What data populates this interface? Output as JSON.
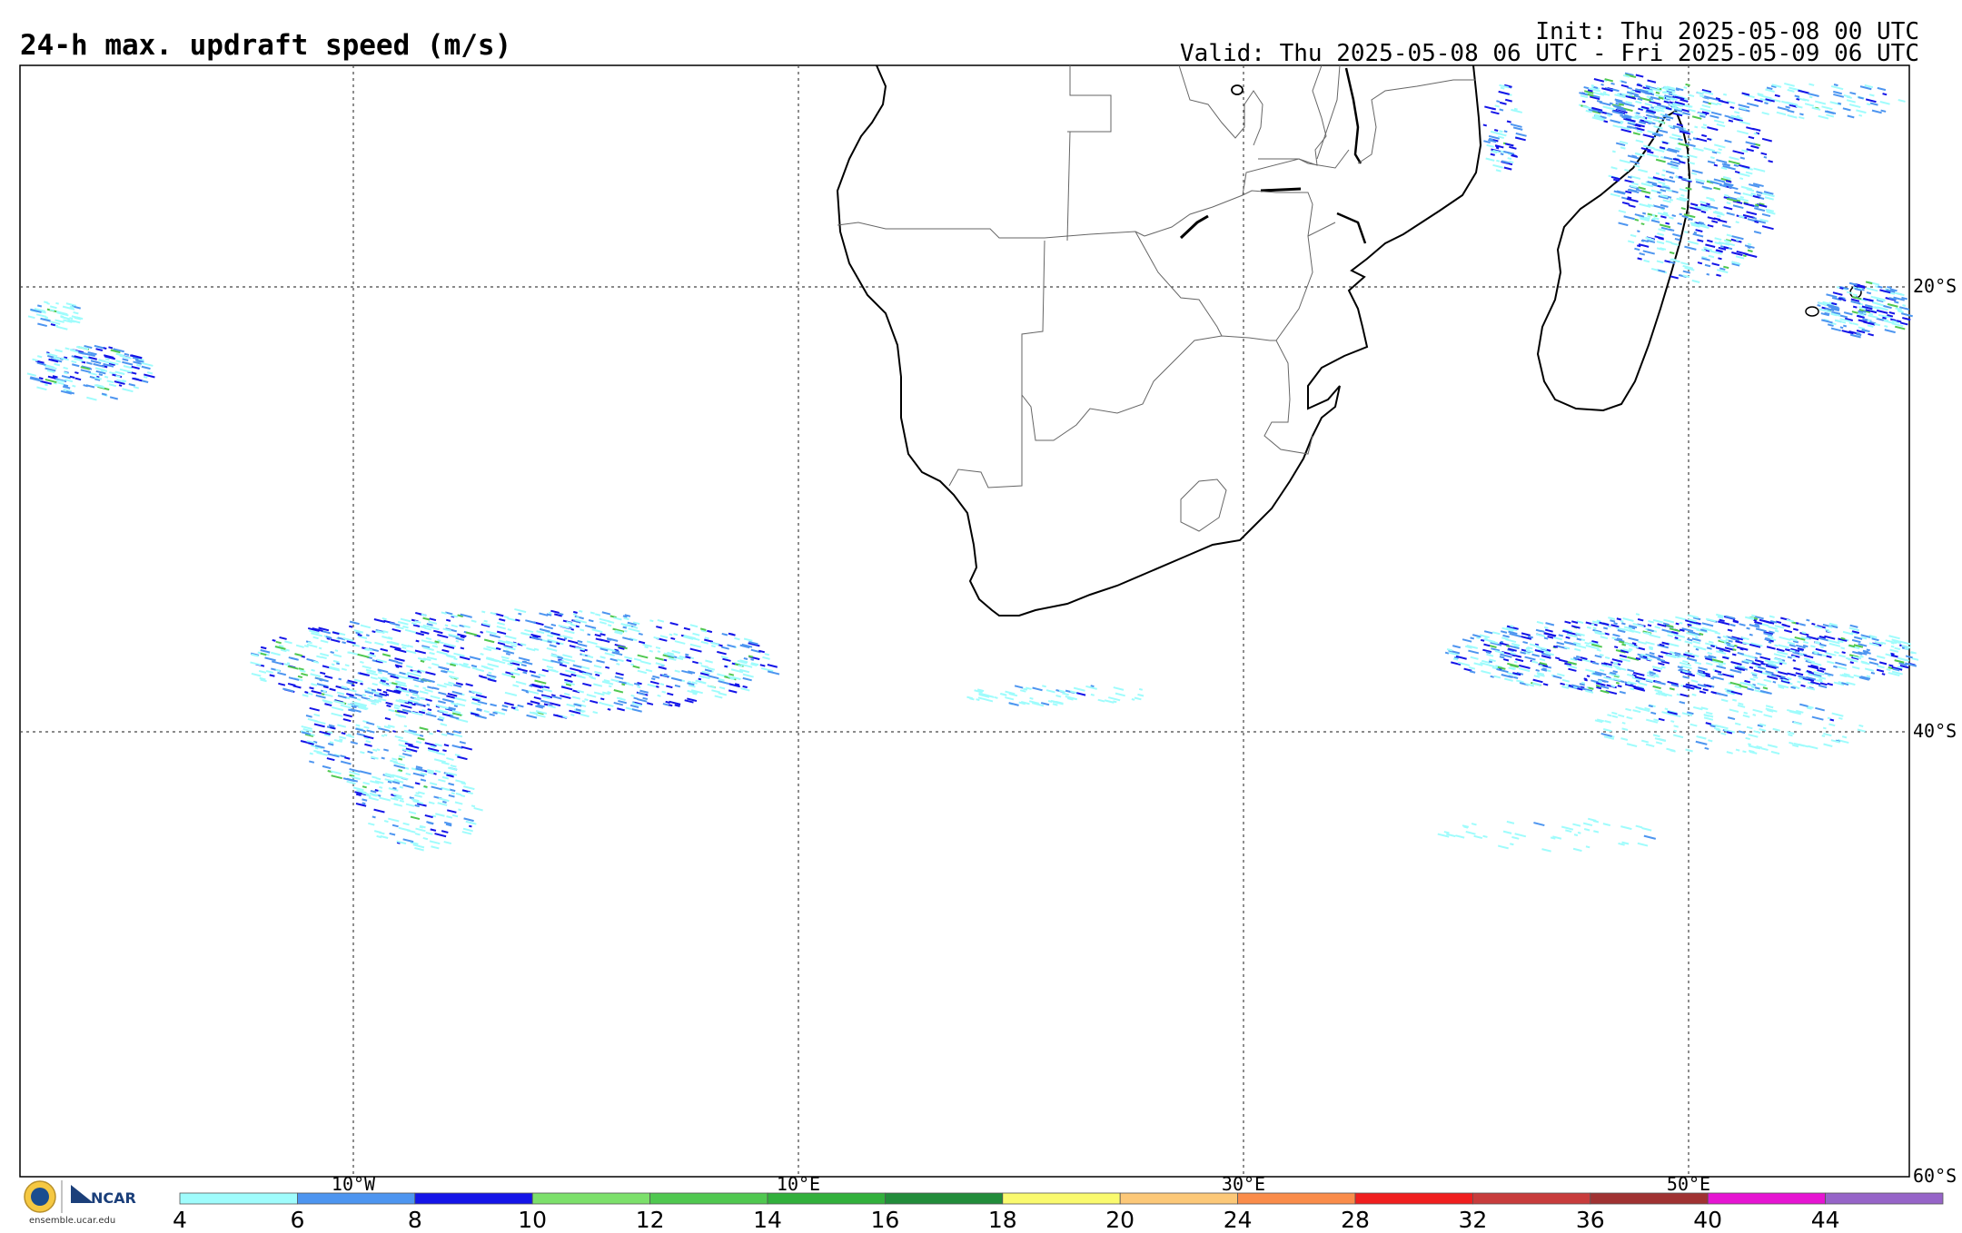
{
  "header": {
    "title": "24-h max. updraft speed (m/s)",
    "init": "Init: Thu 2025-05-08 00 UTC",
    "valid": "Valid: Thu 2025-05-08 06 UTC - Fri 2025-05-09 06 UTC"
  },
  "map": {
    "lon_labels": [
      "10°W",
      "10°E",
      "30°E",
      "50°E"
    ],
    "lat_labels": [
      "20°S",
      "40°S",
      "60°S"
    ]
  },
  "colorbar": {
    "ticks": [
      "4",
      "6",
      "8",
      "10",
      "12",
      "14",
      "16",
      "18",
      "20",
      "24",
      "28",
      "32",
      "36",
      "40",
      "44"
    ],
    "colors": [
      "#9ffcfc",
      "#4d95f0",
      "#1414e8",
      "#7ce06b",
      "#50c850",
      "#32b03c",
      "#228c3a",
      "#fafa6e",
      "#fcc878",
      "#fa8c4a",
      "#f01e1e",
      "#c83c3c",
      "#a03232",
      "#e614d2",
      "#9664c8"
    ]
  },
  "footer": {
    "logo_nsf": "NSF",
    "logo_ncar": "NCAR",
    "url": "ensemble.ucar.edu"
  }
}
